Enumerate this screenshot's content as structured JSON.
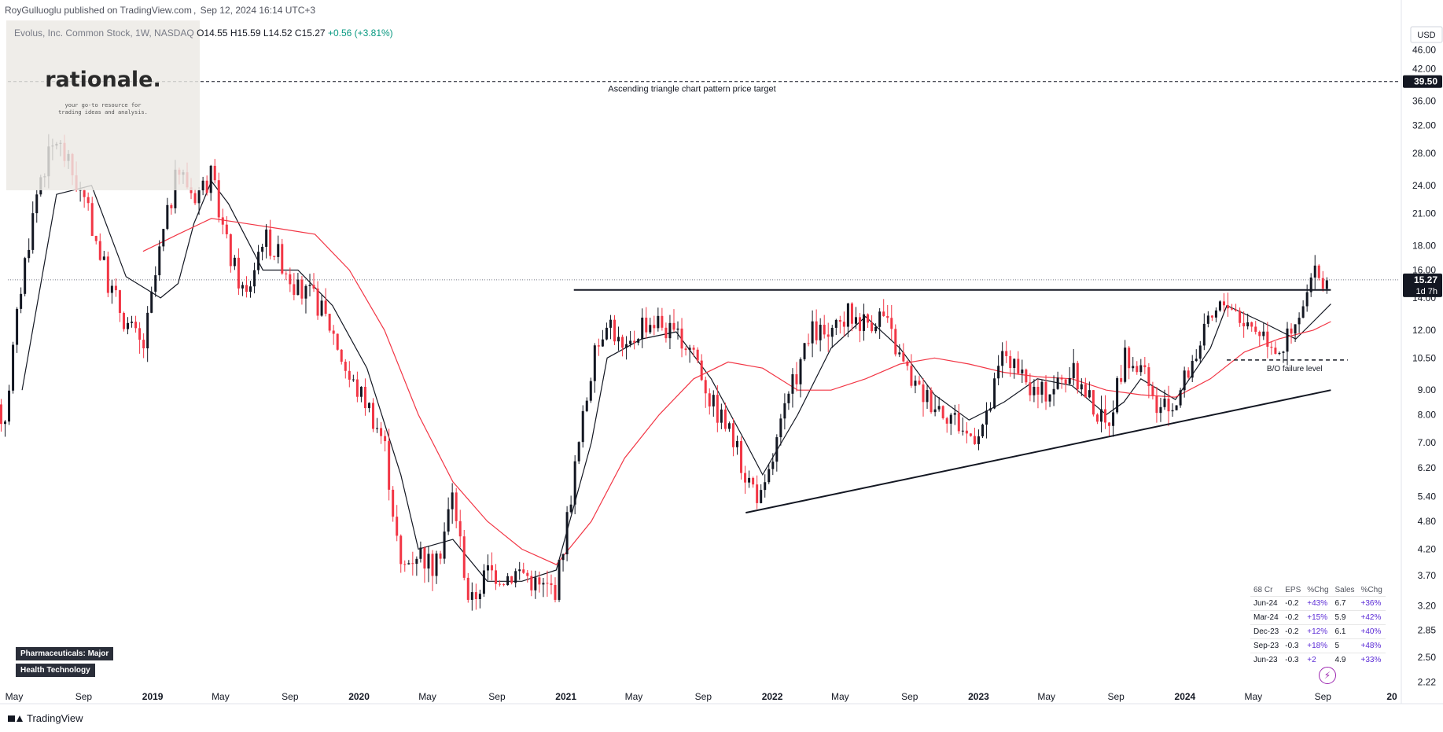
{
  "header": {
    "author_text": "RoyGulluoglu published on TradingView.com",
    "timestamp": "Sep 12, 2024 16:14 UTC+3"
  },
  "symbol_legend": {
    "name": "Evolus, Inc. Common Stock, 1W, NASDAQ",
    "open": "O14.55",
    "high": "H15.59",
    "low": "L14.52",
    "close": "C15.27",
    "change": "+0.56 (+3.81%)"
  },
  "currency": "USD",
  "watermark": {
    "brand": "rationale.",
    "tagline": "your go-to resource for trading ideas and analysis."
  },
  "chips": [
    "Pharmaceuticals: Major",
    "Health Technology"
  ],
  "footer_logo": "TradingView",
  "price_badge": {
    "value": "15.27",
    "countdown": "1d 7h"
  },
  "target_badge": "39.50",
  "colors": {
    "up": "#131722",
    "down": "#f23645",
    "sma_short": "#131722",
    "sma_long": "#f23645",
    "badge_bg": "#131722"
  },
  "chart_data": {
    "type": "candlestick",
    "title": "",
    "xlabel": "",
    "ylabel": "",
    "y_scale": "log",
    "ylim": [
      2.2,
      48
    ],
    "y_ticks": [
      "46.00",
      "42.00",
      "36.00",
      "32.00",
      "28.00",
      "24.00",
      "21.00",
      "18.00",
      "16.00",
      "14.00",
      "12.00",
      "10.50",
      "9.00",
      "8.00",
      "7.00",
      "6.20",
      "5.40",
      "4.80",
      "4.20",
      "3.70",
      "3.20",
      "2.85",
      "2.50",
      "2.22"
    ],
    "x_ticks": [
      "May",
      "Sep",
      "2019",
      "May",
      "Sep",
      "2020",
      "May",
      "Sep",
      "2021",
      "May",
      "Sep",
      "2022",
      "May",
      "Sep",
      "2023",
      "May",
      "Sep",
      "2024",
      "May",
      "Sep",
      "20"
    ],
    "price_path": [
      [
        "2018-04",
        8.0
      ],
      [
        "2018-05",
        15.5
      ],
      [
        "2018-06",
        25.0
      ],
      [
        "2018-07",
        30.0
      ],
      [
        "2018-08",
        25.0
      ],
      [
        "2018-09",
        20.0
      ],
      [
        "2018-10",
        15.0
      ],
      [
        "2018-11",
        12.5
      ],
      [
        "2018-12",
        11.0
      ],
      [
        "2019-01",
        18.0
      ],
      [
        "2019-02",
        26.0
      ],
      [
        "2019-03",
        23.0
      ],
      [
        "2019-04",
        25.0
      ],
      [
        "2019-05",
        17.5
      ],
      [
        "2019-06",
        14.0
      ],
      [
        "2019-07",
        19.0
      ],
      [
        "2019-08",
        17.0
      ],
      [
        "2019-09",
        14.5
      ],
      [
        "2019-10",
        14.0
      ],
      [
        "2019-11",
        12.0
      ],
      [
        "2019-12",
        9.5
      ],
      [
        "2020-01",
        8.5
      ],
      [
        "2020-02",
        7.0
      ],
      [
        "2020-03",
        3.8
      ],
      [
        "2020-04",
        4.2
      ],
      [
        "2020-05",
        3.8
      ],
      [
        "2020-06",
        5.5
      ],
      [
        "2020-07",
        3.2
      ],
      [
        "2020-08",
        3.8
      ],
      [
        "2020-09",
        3.7
      ],
      [
        "2020-10",
        3.8
      ],
      [
        "2020-11",
        3.5
      ],
      [
        "2020-12",
        3.5
      ],
      [
        "2021-01",
        6.0
      ],
      [
        "2021-02",
        10.0
      ],
      [
        "2021-03",
        13.0
      ],
      [
        "2021-04",
        10.5
      ],
      [
        "2021-05",
        12.5
      ],
      [
        "2021-06",
        12.5
      ],
      [
        "2021-07",
        11.5
      ],
      [
        "2021-08",
        11.0
      ],
      [
        "2021-09",
        8.5
      ],
      [
        "2021-10",
        7.5
      ],
      [
        "2021-11",
        6.0
      ],
      [
        "2021-12",
        5.3
      ],
      [
        "2022-01",
        7.5
      ],
      [
        "2022-02",
        10.0
      ],
      [
        "2022-03",
        12.0
      ],
      [
        "2022-04",
        11.5
      ],
      [
        "2022-05",
        13.0
      ],
      [
        "2022-06",
        12.5
      ],
      [
        "2022-07",
        13.0
      ],
      [
        "2022-08",
        10.5
      ],
      [
        "2022-09",
        9.0
      ],
      [
        "2022-10",
        8.5
      ],
      [
        "2022-11",
        8.0
      ],
      [
        "2022-12",
        7.2
      ],
      [
        "2023-01",
        7.8
      ],
      [
        "2023-02",
        11.0
      ],
      [
        "2023-03",
        9.5
      ],
      [
        "2023-04",
        8.8
      ],
      [
        "2023-05",
        9.2
      ],
      [
        "2023-06",
        9.8
      ],
      [
        "2023-07",
        8.7
      ],
      [
        "2023-08",
        7.5
      ],
      [
        "2023-09",
        10.5
      ],
      [
        "2023-10",
        10.0
      ],
      [
        "2023-11",
        8.0
      ],
      [
        "2023-12",
        8.5
      ],
      [
        "2024-01",
        10.5
      ],
      [
        "2024-02",
        12.5
      ],
      [
        "2024-03",
        14.0
      ],
      [
        "2024-04",
        12.5
      ],
      [
        "2024-05",
        12.0
      ],
      [
        "2024-06",
        11.0
      ],
      [
        "2024-07",
        12.0
      ],
      [
        "2024-08",
        15.5
      ],
      [
        "2024-09",
        15.27
      ]
    ],
    "sma_short_path": [
      [
        "2018-05",
        9.0
      ],
      [
        "2018-07",
        23.0
      ],
      [
        "2018-09",
        24.0
      ],
      [
        "2018-11",
        15.5
      ],
      [
        "2019-01",
        14.0
      ],
      [
        "2019-02",
        15.0
      ],
      [
        "2019-03",
        20.0
      ],
      [
        "2019-04",
        24.5
      ],
      [
        "2019-05",
        22.0
      ],
      [
        "2019-07",
        16.0
      ],
      [
        "2019-09",
        16.0
      ],
      [
        "2019-11",
        13.5
      ],
      [
        "2020-01",
        10.0
      ],
      [
        "2020-03",
        6.0
      ],
      [
        "2020-04",
        4.2
      ],
      [
        "2020-06",
        4.4
      ],
      [
        "2020-08",
        3.6
      ],
      [
        "2020-10",
        3.6
      ],
      [
        "2020-12",
        3.8
      ],
      [
        "2021-02",
        7.0
      ],
      [
        "2021-03",
        10.5
      ],
      [
        "2021-05",
        11.5
      ],
      [
        "2021-07",
        11.9
      ],
      [
        "2021-09",
        9.5
      ],
      [
        "2021-11",
        7.0
      ],
      [
        "2021-12",
        6.0
      ],
      [
        "2022-02",
        8.0
      ],
      [
        "2022-04",
        11.0
      ],
      [
        "2022-06",
        12.8
      ],
      [
        "2022-08",
        11.0
      ],
      [
        "2022-10",
        8.8
      ],
      [
        "2022-12",
        7.8
      ],
      [
        "2023-02",
        8.5
      ],
      [
        "2023-04",
        9.5
      ],
      [
        "2023-06",
        9.2
      ],
      [
        "2023-08",
        8.0
      ],
      [
        "2023-09",
        8.5
      ],
      [
        "2023-10",
        9.5
      ],
      [
        "2023-12",
        8.6
      ],
      [
        "2024-02",
        11.0
      ],
      [
        "2024-03",
        13.5
      ],
      [
        "2024-05",
        12.5
      ],
      [
        "2024-07",
        11.5
      ],
      [
        "2024-08",
        12.5
      ],
      [
        "2024-09",
        13.6
      ]
    ],
    "sma_long_path": [
      [
        "2018-12",
        17.5
      ],
      [
        "2019-02",
        19.0
      ],
      [
        "2019-04",
        20.5
      ],
      [
        "2019-06",
        20.0
      ],
      [
        "2019-08",
        19.5
      ],
      [
        "2019-10",
        19.0
      ],
      [
        "2019-12",
        16.0
      ],
      [
        "2020-02",
        12.0
      ],
      [
        "2020-04",
        8.0
      ],
      [
        "2020-06",
        5.8
      ],
      [
        "2020-08",
        4.8
      ],
      [
        "2020-10",
        4.2
      ],
      [
        "2020-12",
        3.9
      ],
      [
        "2021-02",
        4.8
      ],
      [
        "2021-04",
        6.5
      ],
      [
        "2021-06",
        8.0
      ],
      [
        "2021-08",
        9.5
      ],
      [
        "2021-10",
        10.3
      ],
      [
        "2021-12",
        10.0
      ],
      [
        "2022-02",
        9.0
      ],
      [
        "2022-04",
        9.0
      ],
      [
        "2022-06",
        9.5
      ],
      [
        "2022-08",
        10.2
      ],
      [
        "2022-10",
        10.5
      ],
      [
        "2022-12",
        10.2
      ],
      [
        "2023-02",
        9.8
      ],
      [
        "2023-04",
        9.6
      ],
      [
        "2023-06",
        9.5
      ],
      [
        "2023-08",
        9.0
      ],
      [
        "2023-10",
        8.8
      ],
      [
        "2023-12",
        8.7
      ],
      [
        "2024-02",
        9.5
      ],
      [
        "2024-04",
        10.8
      ],
      [
        "2024-06",
        11.5
      ],
      [
        "2024-08",
        12.0
      ],
      [
        "2024-09",
        12.5
      ]
    ],
    "annotations": {
      "target_line": {
        "price": 39.5,
        "label": "Ascending triangle chart pattern price target"
      },
      "resistance_line": {
        "price": 14.55,
        "from": "2021-01",
        "to": "2024-09"
      },
      "failure_line": {
        "price": 10.4,
        "from": "2024-03",
        "to": "2024-10",
        "label": "B/O failure level"
      },
      "support_line": {
        "from": [
          "2021-11",
          5.0
        ],
        "to": [
          "2024-09",
          9.0
        ]
      },
      "last_price_line": 15.27
    }
  },
  "earnings_table": {
    "columns": [
      "68 Cr",
      "EPS",
      "%Chg",
      "Sales",
      "%Chg"
    ],
    "rows": [
      [
        "Jun-24",
        "-0.2",
        "+43%",
        "6.7",
        "+36%"
      ],
      [
        "Mar-24",
        "-0.2",
        "+15%",
        "5.9",
        "+42%"
      ],
      [
        "Dec-23",
        "-0.2",
        "+12%",
        "6.1",
        "+40%"
      ],
      [
        "Sep-23",
        "-0.3",
        "+18%",
        "5",
        "+48%"
      ],
      [
        "Jun-23",
        "-0.3",
        "+2",
        "4.9",
        "+33%"
      ]
    ]
  }
}
